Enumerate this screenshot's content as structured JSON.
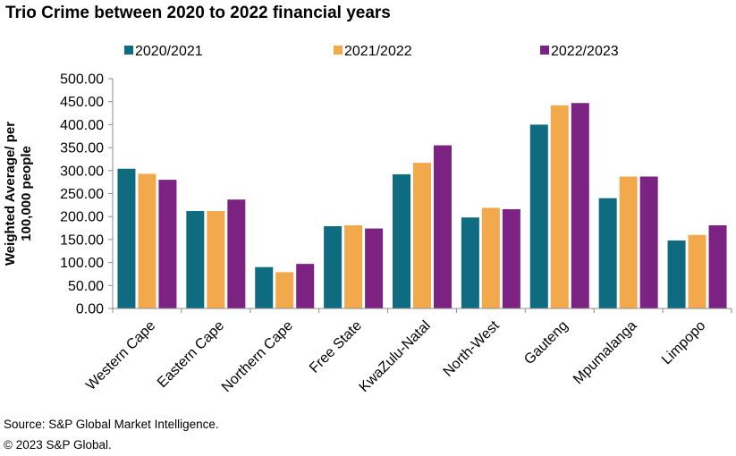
{
  "title": "Trio Crime between 2020 to 2022 financial years",
  "footer": {
    "source": "Source: S&P Global Market Intelligence.",
    "copyright": "© 2023 S&P Global."
  },
  "chart_data": {
    "type": "bar",
    "categories": [
      "Western Cape",
      "Eastern Cape",
      "Northern Cape",
      "Free State",
      "KwaZulu-Natal",
      "North-West",
      "Gauteng",
      "Mpumalanga",
      "Limpopo"
    ],
    "series": [
      {
        "name": "2020/2021",
        "color": "#0f6b7f",
        "values": [
          304,
          212,
          90,
          179,
          292,
          198,
          400,
          240,
          148
        ]
      },
      {
        "name": "2021/2022",
        "color": "#f2a94c",
        "values": [
          293,
          212,
          79,
          181,
          317,
          219,
          442,
          287,
          160
        ]
      },
      {
        "name": "2022/2023",
        "color": "#7b2282",
        "values": [
          280,
          237,
          97,
          174,
          355,
          216,
          447,
          287,
          181
        ]
      }
    ],
    "ylabel_lines": [
      "Weighted Average/ per",
      "100,000  people"
    ],
    "ylim": [
      0,
      500
    ],
    "yticks": [
      "0.00",
      "50.00",
      "100.00",
      "150.00",
      "200.00",
      "250.00",
      "300.00",
      "350.00",
      "400.00",
      "450.00",
      "500.00"
    ],
    "legend_position": "top",
    "grid": false
  }
}
